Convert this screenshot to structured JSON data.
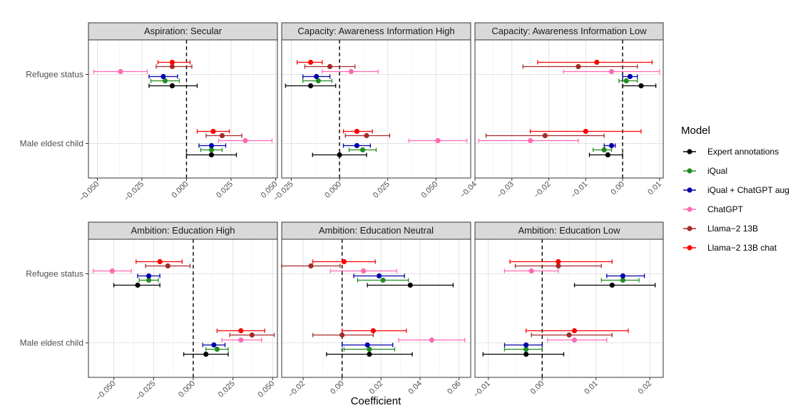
{
  "xlabel": "Coefficient",
  "legend": {
    "title": "Model",
    "items": [
      {
        "name": "Expert annotations",
        "color": "#000000"
      },
      {
        "name": "iQual",
        "color": "#228B22"
      },
      {
        "name": "iQual + ChatGPT aug",
        "color": "#0000AA"
      },
      {
        "name": "ChatGPT",
        "color": "#FF69B4"
      },
      {
        "name": "Llama−2 13B",
        "color": "#A52A2A"
      },
      {
        "name": "Llama−2 13B chat",
        "color": "#FF0000"
      }
    ]
  },
  "chart_data": [
    {
      "type": "scatter",
      "title": "Aspiration: Secular",
      "categories": [
        "Refugee status",
        "Male eldest child"
      ],
      "xlim": [
        -0.055,
        0.051
      ],
      "xticks": [
        -0.05,
        -0.025,
        0.0,
        0.025,
        0.05
      ],
      "xtick_labels": [
        "−0.050",
        "−0.025",
        "0.000",
        "0.025",
        "0.050"
      ],
      "series": [
        {
          "name": "Expert annotations",
          "points": [
            [
              -0.008,
              -0.021,
              0.006
            ],
            [
              0.014,
              0.0,
              0.028
            ]
          ]
        },
        {
          "name": "iQual",
          "points": [
            [
              -0.012,
              -0.02,
              -0.004
            ],
            [
              0.014,
              0.008,
              0.02
            ]
          ]
        },
        {
          "name": "iQual + ChatGPT aug",
          "points": [
            [
              -0.013,
              -0.021,
              -0.005
            ],
            [
              0.014,
              0.007,
              0.022
            ]
          ]
        },
        {
          "name": "ChatGPT",
          "points": [
            [
              -0.037,
              -0.052,
              -0.022
            ],
            [
              0.033,
              0.018,
              0.048
            ]
          ]
        },
        {
          "name": "Llama−2 13B",
          "points": [
            [
              -0.008,
              -0.017,
              0.003
            ],
            [
              0.02,
              0.011,
              0.031
            ]
          ]
        },
        {
          "name": "Llama−2 13B chat",
          "points": [
            [
              -0.008,
              -0.016,
              0.002
            ],
            [
              0.015,
              0.006,
              0.024
            ]
          ]
        }
      ]
    },
    {
      "type": "scatter",
      "title": "Capacity: Awareness Information High",
      "categories": [
        "Refugee status",
        "Male eldest child"
      ],
      "xlim": [
        -0.03,
        0.068
      ],
      "xticks": [
        -0.025,
        0.0,
        0.025,
        0.05
      ],
      "xtick_labels": [
        "−0.025",
        "0.000",
        "0.025",
        "0.050"
      ],
      "series": [
        {
          "name": "Expert annotations",
          "points": [
            [
              -0.015,
              -0.028,
              -0.002
            ],
            [
              0.0,
              -0.014,
              0.014
            ]
          ]
        },
        {
          "name": "iQual",
          "points": [
            [
              -0.011,
              -0.019,
              -0.004
            ],
            [
              0.012,
              0.005,
              0.019
            ]
          ]
        },
        {
          "name": "iQual + ChatGPT aug",
          "points": [
            [
              -0.012,
              -0.019,
              -0.005
            ],
            [
              0.009,
              0.002,
              0.016
            ]
          ]
        },
        {
          "name": "ChatGPT",
          "points": [
            [
              0.006,
              -0.009,
              0.02
            ],
            [
              0.051,
              0.036,
              0.066
            ]
          ]
        },
        {
          "name": "Llama−2 13B",
          "points": [
            [
              -0.005,
              -0.018,
              0.008
            ],
            [
              0.014,
              0.003,
              0.026
            ]
          ]
        },
        {
          "name": "Llama−2 13B chat",
          "points": [
            [
              -0.015,
              -0.022,
              -0.009
            ],
            [
              0.009,
              0.002,
              0.017
            ]
          ]
        }
      ]
    },
    {
      "type": "scatter",
      "title": "Capacity: Awareness Information Low",
      "categories": [
        "Refugee status",
        "Male eldest child"
      ],
      "xlim": [
        -0.04,
        0.011
      ],
      "xticks": [
        -0.04,
        -0.03,
        -0.02,
        -0.01,
        0.0,
        0.01
      ],
      "xtick_labels": [
        "−0.04",
        "−0.03",
        "−0.02",
        "−0.01",
        "0.00",
        "0.01"
      ],
      "series": [
        {
          "name": "Expert annotations",
          "points": [
            [
              0.005,
              0.0,
              0.009
            ],
            [
              -0.004,
              -0.009,
              0.0
            ]
          ]
        },
        {
          "name": "iQual",
          "points": [
            [
              0.001,
              -0.001,
              0.004
            ],
            [
              -0.005,
              -0.008,
              -0.003
            ]
          ]
        },
        {
          "name": "iQual + ChatGPT aug",
          "points": [
            [
              0.002,
              0.0,
              0.004
            ],
            [
              -0.003,
              -0.005,
              -0.002
            ]
          ]
        },
        {
          "name": "ChatGPT",
          "points": [
            [
              -0.003,
              -0.016,
              0.01
            ],
            [
              -0.025,
              -0.039,
              -0.012
            ]
          ]
        },
        {
          "name": "Llama−2 13B",
          "points": [
            [
              -0.012,
              -0.027,
              0.004
            ],
            [
              -0.021,
              -0.037,
              -0.005
            ]
          ]
        },
        {
          "name": "Llama−2 13B chat",
          "points": [
            [
              -0.007,
              -0.023,
              0.008
            ],
            [
              -0.01,
              -0.025,
              0.005
            ]
          ]
        }
      ]
    },
    {
      "type": "scatter",
      "title": "Ambition: Education High",
      "categories": [
        "Refugee status",
        "Male eldest child"
      ],
      "xlim": [
        -0.066,
        0.053
      ],
      "xticks": [
        -0.05,
        -0.025,
        0.0,
        0.025,
        0.05
      ],
      "xtick_labels": [
        "−0.050",
        "−0.025",
        "0.000",
        "0.025",
        "0.050"
      ],
      "series": [
        {
          "name": "Expert annotations",
          "points": [
            [
              -0.035,
              -0.05,
              -0.021
            ],
            [
              0.008,
              -0.006,
              0.022
            ]
          ]
        },
        {
          "name": "iQual",
          "points": [
            [
              -0.028,
              -0.034,
              -0.022
            ],
            [
              0.015,
              0.008,
              0.022
            ]
          ]
        },
        {
          "name": "iQual + ChatGPT aug",
          "points": [
            [
              -0.028,
              -0.035,
              -0.021
            ],
            [
              0.013,
              0.006,
              0.02
            ]
          ]
        },
        {
          "name": "ChatGPT",
          "points": [
            [
              -0.051,
              -0.063,
              -0.039
            ],
            [
              0.03,
              0.018,
              0.043
            ]
          ]
        },
        {
          "name": "Llama−2 13B",
          "points": [
            [
              -0.016,
              -0.03,
              -0.002
            ],
            [
              0.037,
              0.023,
              0.051
            ]
          ]
        },
        {
          "name": "Llama−2 13B chat",
          "points": [
            [
              -0.021,
              -0.036,
              -0.007
            ],
            [
              0.03,
              0.015,
              0.045
            ]
          ]
        }
      ]
    },
    {
      "type": "scatter",
      "title": "Ambition: Education Neutral",
      "categories": [
        "Refugee status",
        "Male eldest child"
      ],
      "xlim": [
        -0.031,
        0.066
      ],
      "xticks": [
        -0.02,
        0.0,
        0.02,
        0.04,
        0.06
      ],
      "xtick_labels": [
        "−0.02",
        "0.00",
        "0.02",
        "0.04",
        "0.06"
      ],
      "series": [
        {
          "name": "Expert annotations",
          "points": [
            [
              0.035,
              0.013,
              0.057
            ],
            [
              0.014,
              -0.008,
              0.036
            ]
          ]
        },
        {
          "name": "iQual",
          "points": [
            [
              0.021,
              0.008,
              0.034
            ],
            [
              0.014,
              0.001,
              0.027
            ]
          ]
        },
        {
          "name": "iQual + ChatGPT aug",
          "points": [
            [
              0.019,
              0.006,
              0.032
            ],
            [
              0.013,
              0.0,
              0.026
            ]
          ]
        },
        {
          "name": "ChatGPT",
          "points": [
            [
              0.011,
              -0.006,
              0.028
            ],
            [
              0.046,
              0.029,
              0.063
            ]
          ]
        },
        {
          "name": "Llama−2 13B",
          "points": [
            [
              -0.016,
              -0.031,
              -0.001
            ],
            [
              0.0,
              -0.015,
              0.016
            ]
          ]
        },
        {
          "name": "Llama−2 13B chat",
          "points": [
            [
              0.001,
              -0.015,
              0.017
            ],
            [
              0.016,
              0.0,
              0.033
            ]
          ]
        }
      ]
    },
    {
      "type": "scatter",
      "title": "Ambition: Education Low",
      "categories": [
        "Refugee status",
        "Male eldest child"
      ],
      "xlim": [
        -0.0125,
        0.0225
      ],
      "xticks": [
        -0.01,
        0.0,
        0.01,
        0.02
      ],
      "xtick_labels": [
        "−0.01",
        "0.00",
        "0.01",
        "0.02"
      ],
      "series": [
        {
          "name": "Expert annotations",
          "points": [
            [
              0.013,
              0.006,
              0.021
            ],
            [
              -0.003,
              -0.011,
              0.004
            ]
          ]
        },
        {
          "name": "iQual",
          "points": [
            [
              0.015,
              0.011,
              0.018
            ],
            [
              -0.003,
              -0.007,
              0.0
            ]
          ]
        },
        {
          "name": "iQual + ChatGPT aug",
          "points": [
            [
              0.015,
              0.012,
              0.019
            ],
            [
              -0.003,
              -0.007,
              0.0
            ]
          ]
        },
        {
          "name": "ChatGPT",
          "points": [
            [
              -0.002,
              -0.007,
              0.003
            ],
            [
              0.006,
              0.001,
              0.012
            ]
          ]
        },
        {
          "name": "Llama−2 13B",
          "points": [
            [
              0.003,
              -0.005,
              0.011
            ],
            [
              0.005,
              -0.002,
              0.013
            ]
          ]
        },
        {
          "name": "Llama−2 13B chat",
          "points": [
            [
              0.003,
              -0.006,
              0.013
            ],
            [
              0.006,
              -0.003,
              0.016
            ]
          ]
        }
      ]
    }
  ]
}
